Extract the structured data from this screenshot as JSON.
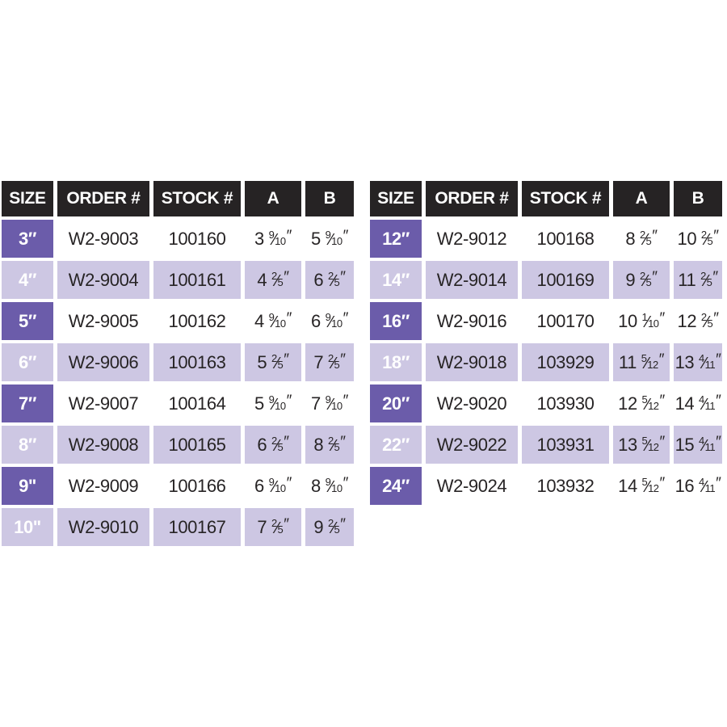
{
  "colors": {
    "header_bg": "#262324",
    "header_text": "#ffffff",
    "size_cell_bg": "#6b5caa",
    "size_cell_text": "#ffffff",
    "stripe_bg": "#cdc7e3",
    "row_bg": "#ffffff",
    "body_text": "#272425",
    "page_bg": "#ffffff"
  },
  "headers": [
    "SIZE",
    "ORDER #",
    "STOCK #",
    "A",
    "B"
  ],
  "inch_mark": "″",
  "tables": [
    {
      "id": "left",
      "rows": [
        {
          "size": "3″",
          "order": "W2-9003",
          "stock": "100160",
          "a": {
            "w": "3",
            "n": "9",
            "d": "10"
          },
          "b": {
            "w": "5",
            "n": "9",
            "d": "10"
          }
        },
        {
          "size": "4″",
          "order": "W2-9004",
          "stock": "100161",
          "a": {
            "w": "4",
            "n": "2",
            "d": "5"
          },
          "b": {
            "w": "6",
            "n": "2",
            "d": "5"
          }
        },
        {
          "size": "5″",
          "order": "W2-9005",
          "stock": "100162",
          "a": {
            "w": "4",
            "n": "9",
            "d": "10"
          },
          "b": {
            "w": "6",
            "n": "9",
            "d": "10"
          }
        },
        {
          "size": "6″",
          "order": "W2-9006",
          "stock": "100163",
          "a": {
            "w": "5",
            "n": "2",
            "d": "5"
          },
          "b": {
            "w": "7",
            "n": "2",
            "d": "5"
          }
        },
        {
          "size": "7″",
          "order": "W2-9007",
          "stock": "100164",
          "a": {
            "w": "5",
            "n": "9",
            "d": "10"
          },
          "b": {
            "w": "7",
            "n": "9",
            "d": "10"
          }
        },
        {
          "size": "8″",
          "order": "W2-9008",
          "stock": "100165",
          "a": {
            "w": "6",
            "n": "2",
            "d": "5"
          },
          "b": {
            "w": "8",
            "n": "2",
            "d": "5"
          }
        },
        {
          "size": "9\"",
          "order": "W2-9009",
          "stock": "100166",
          "a": {
            "w": "6",
            "n": "9",
            "d": "10"
          },
          "b": {
            "w": "8",
            "n": "9",
            "d": "10"
          }
        },
        {
          "size": "10\"",
          "order": "W2-9010",
          "stock": "100167",
          "a": {
            "w": "7",
            "n": "2",
            "d": "5"
          },
          "b": {
            "w": "9",
            "n": "2",
            "d": "5"
          }
        }
      ]
    },
    {
      "id": "right",
      "rows": [
        {
          "size": "12″",
          "order": "W2-9012",
          "stock": "100168",
          "a": {
            "w": "8",
            "n": "2",
            "d": "5"
          },
          "b": {
            "w": "10",
            "n": "2",
            "d": "5"
          }
        },
        {
          "size": "14″",
          "order": "W2-9014",
          "stock": "100169",
          "a": {
            "w": "9",
            "n": "2",
            "d": "5"
          },
          "b": {
            "w": "11",
            "n": "2",
            "d": "5"
          }
        },
        {
          "size": "16″",
          "order": "W2-9016",
          "stock": "100170",
          "a": {
            "w": "10",
            "n": "1",
            "d": "10"
          },
          "b": {
            "w": "12",
            "n": "2",
            "d": "5"
          }
        },
        {
          "size": "18″",
          "order": "W2-9018",
          "stock": "103929",
          "a": {
            "w": "11",
            "n": "5",
            "d": "12"
          },
          "b": {
            "w": "13",
            "n": "4",
            "d": "11"
          }
        },
        {
          "size": "20″",
          "order": "W2-9020",
          "stock": "103930",
          "a": {
            "w": "12",
            "n": "5",
            "d": "12"
          },
          "b": {
            "w": "14",
            "n": "4",
            "d": "11"
          }
        },
        {
          "size": "22″",
          "order": "W2-9022",
          "stock": "103931",
          "a": {
            "w": "13",
            "n": "5",
            "d": "12"
          },
          "b": {
            "w": "15",
            "n": "4",
            "d": "11"
          }
        },
        {
          "size": "24″",
          "order": "W2-9024",
          "stock": "103932",
          "a": {
            "w": "14",
            "n": "5",
            "d": "12"
          },
          "b": {
            "w": "16",
            "n": "4",
            "d": "11"
          }
        }
      ]
    }
  ]
}
